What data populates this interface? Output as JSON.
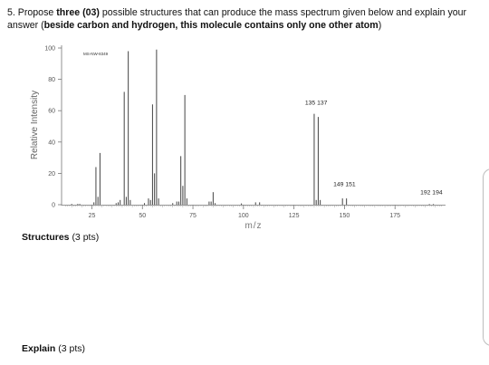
{
  "question": {
    "number": "5.",
    "part1": "Propose",
    "bold1": "three (03)",
    "part2": "possible structures that can produce the mass spectrum given below and explain your answer (",
    "bold2": "beside carbon and hydrogen, this molecule contains only one other atom",
    "part3": ")"
  },
  "structures": {
    "label": "Structures",
    "pts": "(3 pts)"
  },
  "explain": {
    "label": "Explain",
    "pts": "(3 pts)"
  },
  "chart_data": {
    "type": "bar",
    "spectrum_id": "MS-NW-8349",
    "xlabel": "m/z",
    "ylabel": "Relative Intensity",
    "xlim": [
      10,
      200
    ],
    "ylim": [
      0,
      100
    ],
    "xticks": [
      25,
      50,
      75,
      100,
      125,
      150,
      175
    ],
    "yticks": [
      0,
      20,
      40,
      60,
      80,
      100
    ],
    "annotations": [
      {
        "text": "135  137",
        "x": 136,
        "y": 62
      },
      {
        "text": "149  151",
        "x": 150,
        "y": 10
      },
      {
        "text": "192  194",
        "x": 193,
        "y": 5
      }
    ],
    "peaks": [
      {
        "x": 15,
        "y": 0.5
      },
      {
        "x": 18,
        "y": 0.5
      },
      {
        "x": 19,
        "y": 0.5
      },
      {
        "x": 26,
        "y": 1.5
      },
      {
        "x": 27,
        "y": 24
      },
      {
        "x": 28,
        "y": 5
      },
      {
        "x": 29,
        "y": 33
      },
      {
        "x": 37,
        "y": 1
      },
      {
        "x": 38,
        "y": 1.5
      },
      {
        "x": 39,
        "y": 3
      },
      {
        "x": 41,
        "y": 72
      },
      {
        "x": 42,
        "y": 5
      },
      {
        "x": 43,
        "y": 98
      },
      {
        "x": 44,
        "y": 3
      },
      {
        "x": 51,
        "y": 1
      },
      {
        "x": 53,
        "y": 4
      },
      {
        "x": 54,
        "y": 3
      },
      {
        "x": 55,
        "y": 64
      },
      {
        "x": 56,
        "y": 20
      },
      {
        "x": 57,
        "y": 99
      },
      {
        "x": 58,
        "y": 4
      },
      {
        "x": 65,
        "y": 1
      },
      {
        "x": 67,
        "y": 2
      },
      {
        "x": 68,
        "y": 2
      },
      {
        "x": 69,
        "y": 31
      },
      {
        "x": 70,
        "y": 12
      },
      {
        "x": 71,
        "y": 70
      },
      {
        "x": 72,
        "y": 4
      },
      {
        "x": 83,
        "y": 2
      },
      {
        "x": 84,
        "y": 2
      },
      {
        "x": 85,
        "y": 8
      },
      {
        "x": 86,
        "y": 1
      },
      {
        "x": 99,
        "y": 0.8
      },
      {
        "x": 106,
        "y": 1.5
      },
      {
        "x": 108,
        "y": 1.5
      },
      {
        "x": 135,
        "y": 58
      },
      {
        "x": 136,
        "y": 3
      },
      {
        "x": 137,
        "y": 56
      },
      {
        "x": 138,
        "y": 3
      },
      {
        "x": 149,
        "y": 4
      },
      {
        "x": 151,
        "y": 4
      },
      {
        "x": 192,
        "y": 0.4
      },
      {
        "x": 194,
        "y": 0.4
      }
    ]
  }
}
